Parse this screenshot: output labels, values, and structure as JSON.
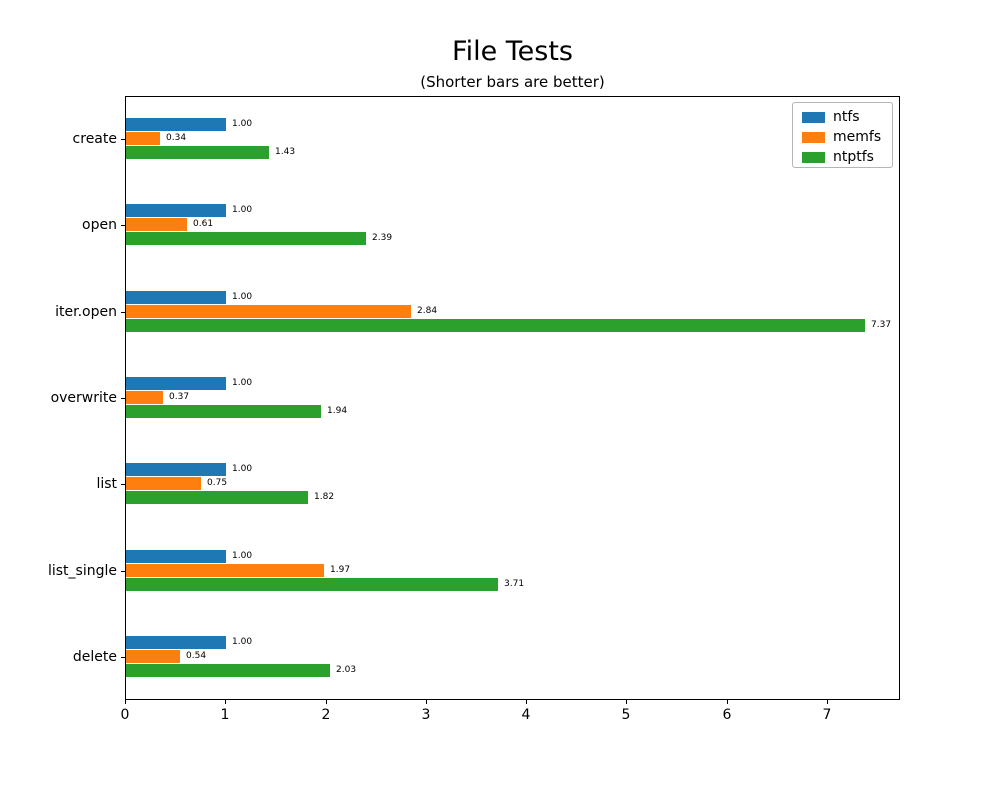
{
  "chart_data": {
    "type": "bar",
    "orientation": "horizontal",
    "title": "File Tests",
    "subtitle": "(Shorter bars are better)",
    "categories": [
      "create",
      "open",
      "iter.open",
      "overwrite",
      "list",
      "list_single",
      "delete"
    ],
    "series": [
      {
        "name": "ntfs",
        "color": "#1f77b4",
        "values": [
          1.0,
          1.0,
          1.0,
          1.0,
          1.0,
          1.0,
          1.0
        ]
      },
      {
        "name": "memfs",
        "color": "#ff7f0e",
        "values": [
          0.34,
          0.61,
          2.84,
          0.37,
          0.75,
          1.97,
          0.54
        ]
      },
      {
        "name": "ntptfs",
        "color": "#2ca02c",
        "values": [
          1.43,
          2.39,
          7.37,
          1.94,
          1.82,
          3.71,
          2.03
        ]
      }
    ],
    "bar_labels": [
      [
        "1.00",
        "1.00",
        "1.00",
        "1.00",
        "1.00",
        "1.00",
        "1.00"
      ],
      [
        "0.34",
        "0.61",
        "2.84",
        "0.37",
        "0.75",
        "1.97",
        "0.54"
      ],
      [
        "1.43",
        "2.39",
        "7.37",
        "1.94",
        "1.82",
        "3.71",
        "2.03"
      ]
    ],
    "x_ticks": [
      "0",
      "1",
      "2",
      "3",
      "4",
      "5",
      "6",
      "7"
    ],
    "xlim": [
      0,
      7.73
    ],
    "grid": false,
    "legend_position": "upper right"
  }
}
